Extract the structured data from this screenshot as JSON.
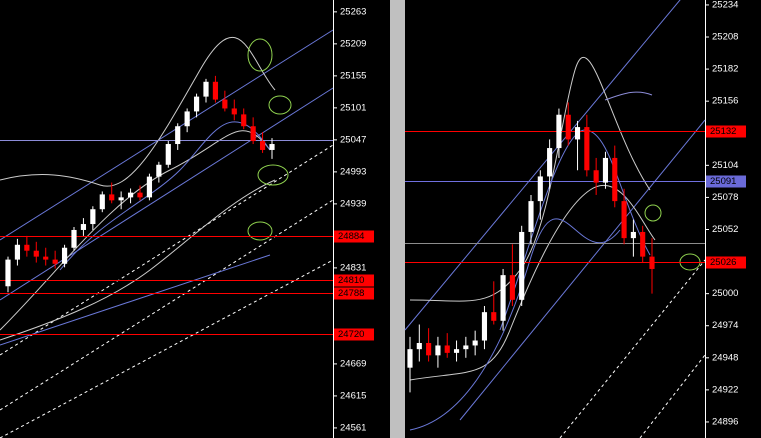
{
  "chart_data": [
    {
      "type": "candlestick",
      "up_color": "#ffffff",
      "down_color": "#ff0000",
      "ylim": [
        24544,
        25283
      ],
      "yticks": [
        25263,
        25209,
        25155,
        25101,
        25047,
        24993,
        24939,
        24831,
        24669,
        24615,
        24561
      ],
      "levels": [
        {
          "value": 25047,
          "color": "#8c8cd8"
        },
        {
          "value": 24884,
          "color": "#ff0000",
          "label_color": "#ff0000"
        },
        {
          "value": 24810,
          "color": "#ff0000",
          "label_color": "#ff0000"
        },
        {
          "value": 24788,
          "color": "#ff0000",
          "label_color": "#ff0000"
        },
        {
          "value": 24720,
          "color": "#ff0000",
          "label_color": "#ff0000"
        }
      ],
      "open": [
        24800,
        24845,
        24870,
        24860,
        24850,
        24845,
        24838,
        24865,
        24895,
        24905,
        24930,
        24955,
        24945,
        24950,
        24958,
        24950,
        24985,
        25005,
        25040,
        25070,
        25095,
        25120,
        25145,
        25115,
        25100,
        25090,
        25070,
        25045,
        25030
      ],
      "high": [
        24850,
        24880,
        24885,
        24875,
        24865,
        24860,
        24870,
        24900,
        24915,
        24935,
        24960,
        24975,
        24960,
        24965,
        24970,
        24990,
        25010,
        25045,
        25075,
        25100,
        25125,
        25150,
        25155,
        25130,
        25115,
        25100,
        25085,
        25060,
        25050
      ],
      "low": [
        24790,
        24835,
        24850,
        24840,
        24835,
        24830,
        24832,
        24860,
        24885,
        24895,
        24925,
        24940,
        24930,
        24940,
        24945,
        24945,
        24975,
        25000,
        25030,
        25060,
        25085,
        25110,
        25110,
        25095,
        25080,
        25065,
        25040,
        25025,
        25015
      ],
      "close": [
        24845,
        24870,
        24860,
        24850,
        24845,
        24838,
        24865,
        24895,
        24905,
        24930,
        24955,
        24945,
        24950,
        24958,
        24950,
        24985,
        25005,
        25040,
        25070,
        25095,
        25120,
        25145,
        25115,
        25100,
        25090,
        25070,
        25045,
        25030,
        25040
      ]
    },
    {
      "type": "candlestick",
      "up_color": "#ffffff",
      "down_color": "#ff0000",
      "ylim": [
        24883,
        25238
      ],
      "yticks": [
        25234,
        25208,
        25182,
        25156,
        25104,
        25078,
        25052,
        25000,
        24974,
        24948,
        24922,
        24896
      ],
      "levels": [
        {
          "value": 25132,
          "color": "#ff0000",
          "label_color": "#ff0000"
        },
        {
          "value": 25091,
          "color": "#7070e0",
          "label_color": "#6a6ad8"
        },
        {
          "value": 25041,
          "color": "#8c8c8c"
        },
        {
          "value": 25026,
          "color": "#ff0000",
          "label_color": "#ff0000"
        }
      ],
      "open": [
        24940,
        24955,
        24960,
        24950,
        24958,
        24952,
        24955,
        24958,
        24962,
        24985,
        24978,
        25015,
        24995,
        25050,
        25075,
        25095,
        25118,
        25145,
        25125,
        25135,
        25100,
        25090,
        25110,
        25075,
        25045,
        25050,
        25030
      ],
      "high": [
        24965,
        24975,
        24972,
        24965,
        24968,
        24962,
        24965,
        24970,
        24990,
        25010,
        25020,
        25040,
        25055,
        25080,
        25100,
        25125,
        25150,
        25155,
        25140,
        25145,
        25110,
        25115,
        25120,
        25085,
        25060,
        25055,
        25045
      ],
      "low": [
        24920,
        24945,
        24945,
        24940,
        24948,
        24945,
        24948,
        24950,
        24955,
        24975,
        24970,
        24990,
        24990,
        25040,
        25060,
        25085,
        25110,
        25120,
        25100,
        25095,
        25080,
        25085,
        25070,
        25040,
        25030,
        25025,
        25000
      ],
      "close": [
        24955,
        24960,
        24950,
        24958,
        24952,
        24955,
        24958,
        24962,
        24985,
        24978,
        25015,
        24995,
        25050,
        25075,
        25095,
        25118,
        25145,
        25125,
        25135,
        25100,
        25090,
        25110,
        25075,
        25045,
        25050,
        25030,
        25020
      ]
    }
  ]
}
